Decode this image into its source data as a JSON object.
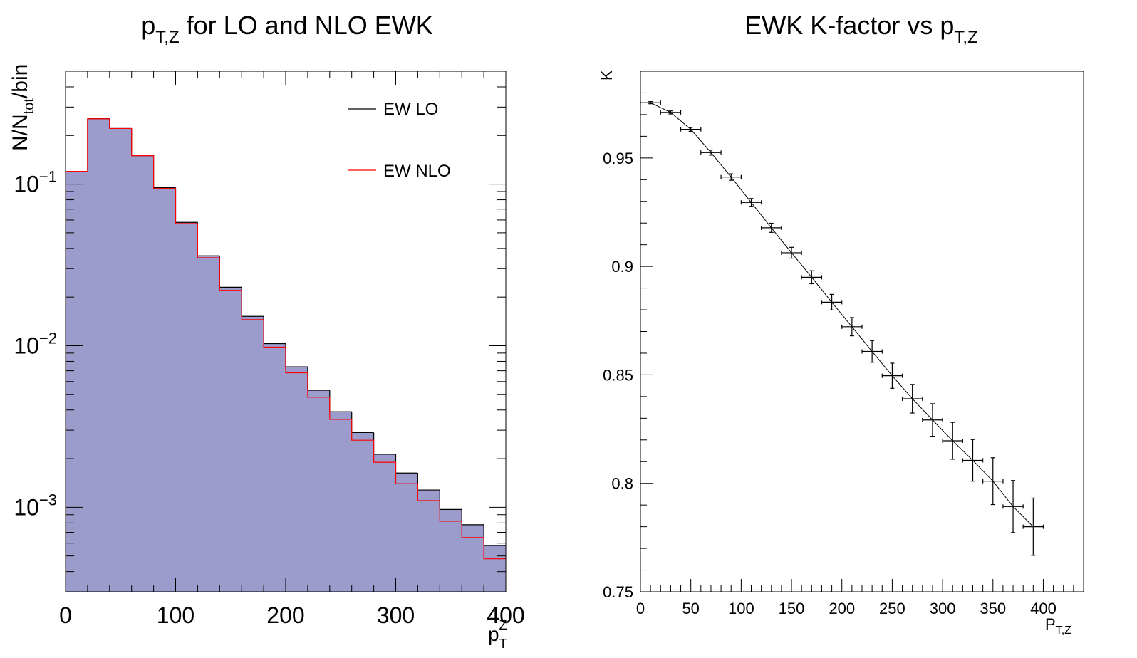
{
  "chart_data": [
    {
      "type": "histogram",
      "title_main": "p",
      "title_sub": "T,Z",
      "title_rest": " for LO and NLO EWK",
      "ylabel": "N/N",
      "ylabel_sub": "tot",
      "ylabel_rest": "/bin",
      "xlabel": "p",
      "xlabel_sup": "Z",
      "xlabel_sub": "T",
      "y_scale": "log",
      "xlim": [
        0,
        400
      ],
      "ylim": [
        0.0003,
        0.5
      ],
      "x_ticks": [
        "0",
        "100",
        "200",
        "300",
        "400"
      ],
      "y_ticks": [
        {
          "base": "10",
          "exp": "−1",
          "value": 0.1
        },
        {
          "base": "10",
          "exp": "−2",
          "value": 0.01
        },
        {
          "base": "10",
          "exp": "−3",
          "value": 0.001
        }
      ],
      "bin_edges": [
        0,
        20,
        40,
        60,
        80,
        100,
        120,
        140,
        160,
        180,
        200,
        220,
        240,
        260,
        280,
        300,
        320,
        340,
        360,
        380,
        400
      ],
      "series": [
        {
          "name": "EW LO",
          "color": "#000000",
          "fill": "#9b9bcc",
          "values": [
            0.12,
            0.254,
            0.221,
            0.15,
            0.095,
            0.058,
            0.036,
            0.023,
            0.0152,
            0.0103,
            0.0074,
            0.0053,
            0.0039,
            0.0029,
            0.00213,
            0.00163,
            0.00128,
            0.00097,
            0.00078,
            0.00058
          ]
        },
        {
          "name": "EW NLO",
          "color": "#ff0000",
          "values": [
            0.12,
            0.254,
            0.221,
            0.15,
            0.094,
            0.057,
            0.035,
            0.022,
            0.0145,
            0.0098,
            0.0068,
            0.0048,
            0.0035,
            0.0026,
            0.0019,
            0.0014,
            0.0011,
            0.00082,
            0.00065,
            0.00048
          ]
        }
      ],
      "legend_position": "top-right",
      "grid": false
    },
    {
      "type": "scatter",
      "title_main": "EWK K-factor vs p",
      "title_sub": "T,Z",
      "ylabel": "K",
      "xlabel": "P",
      "xlabel_sub": "T,Z",
      "xlim": [
        0,
        440
      ],
      "ylim": [
        0.75,
        0.99
      ],
      "x_ticks": [
        "0",
        "50",
        "100",
        "150",
        "200",
        "250",
        "300",
        "350",
        "400"
      ],
      "y_ticks": [
        "0.75",
        "0.8",
        "0.85",
        "0.9",
        "0.95"
      ],
      "x_err": 10,
      "points": [
        {
          "x": 10,
          "y": 0.9755,
          "ey": 0.0005
        },
        {
          "x": 30,
          "y": 0.971,
          "ey": 0.0007
        },
        {
          "x": 50,
          "y": 0.9632,
          "ey": 0.0009
        },
        {
          "x": 70,
          "y": 0.9525,
          "ey": 0.0012
        },
        {
          "x": 90,
          "y": 0.9412,
          "ey": 0.0015
        },
        {
          "x": 110,
          "y": 0.9295,
          "ey": 0.0018
        },
        {
          "x": 130,
          "y": 0.9178,
          "ey": 0.0021
        },
        {
          "x": 150,
          "y": 0.9063,
          "ey": 0.0025
        },
        {
          "x": 170,
          "y": 0.895,
          "ey": 0.003
        },
        {
          "x": 190,
          "y": 0.8835,
          "ey": 0.0036
        },
        {
          "x": 210,
          "y": 0.8722,
          "ey": 0.0042
        },
        {
          "x": 230,
          "y": 0.8608,
          "ey": 0.005
        },
        {
          "x": 250,
          "y": 0.8496,
          "ey": 0.0058
        },
        {
          "x": 270,
          "y": 0.839,
          "ey": 0.0066
        },
        {
          "x": 290,
          "y": 0.8292,
          "ey": 0.0075
        },
        {
          "x": 310,
          "y": 0.8196,
          "ey": 0.0085
        },
        {
          "x": 330,
          "y": 0.8106,
          "ey": 0.0096
        },
        {
          "x": 350,
          "y": 0.801,
          "ey": 0.0108
        },
        {
          "x": 370,
          "y": 0.7893,
          "ey": 0.012
        },
        {
          "x": 390,
          "y": 0.78,
          "ey": 0.0132
        }
      ],
      "fit": true,
      "grid": false
    }
  ]
}
